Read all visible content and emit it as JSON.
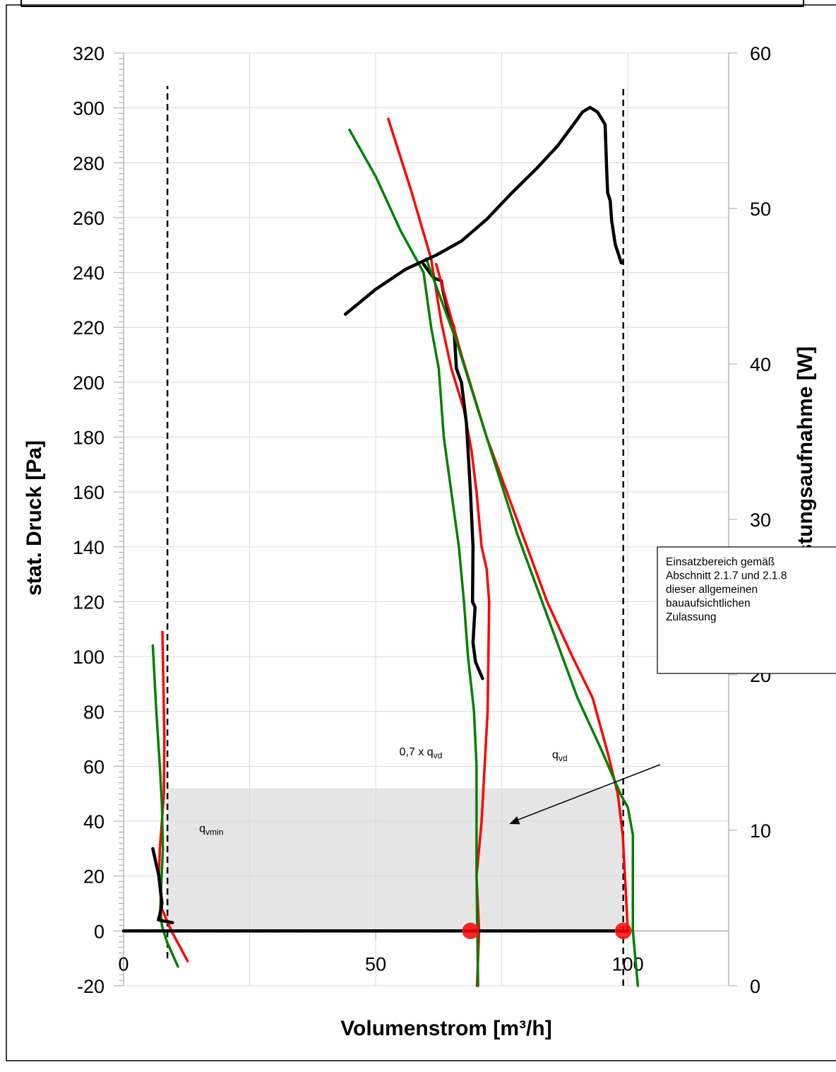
{
  "chart_data": {
    "type": "line",
    "title": "",
    "xlabel": "Volumenstrom [m³/h]",
    "ylabel": "stat. Druck [Pa]",
    "y2label": "Leistungsaufnahme [W]",
    "xlim": [
      0,
      120
    ],
    "ylim": [
      -20,
      320
    ],
    "y2lim": [
      0,
      60
    ],
    "xticks": [
      "0",
      "50",
      "100"
    ],
    "yticks": [
      "320",
      "300",
      "280",
      "260",
      "240",
      "220",
      "200",
      "180",
      "160",
      "140",
      "120",
      "100",
      "80",
      "60",
      "40",
      "20",
      "0",
      "-20"
    ],
    "y2ticks": [
      "60",
      "50",
      "40",
      "30",
      "20",
      "10",
      "0"
    ],
    "grid": true,
    "colors": {
      "red": "#ff0000",
      "green": "#008000",
      "black": "#000000",
      "shade": "#e5e5e5",
      "marker": "#ff0000"
    },
    "series": [
      {
        "color": "#ff0000",
        "axis": "left",
        "x": [
          7.7,
          7.9,
          8.1,
          8.0,
          7.6,
          7.2,
          7.0,
          7.6,
          9.5,
          12.7
        ],
        "y": [
          109,
          90,
          70,
          50,
          40,
          30,
          20,
          8,
          0,
          -11
        ]
      },
      {
        "color": "#008000",
        "axis": "left",
        "x": [
          5.8,
          6.5,
          7.2,
          7.6,
          7.8,
          7.5,
          7.3,
          7.6,
          8.6,
          10.8
        ],
        "y": [
          104,
          80,
          60,
          46,
          30,
          18,
          8,
          2,
          -4,
          -13
        ]
      },
      {
        "color": "#000000",
        "axis": "left",
        "x": [
          5.8,
          7.0,
          7.6,
          7.2,
          6.9,
          9.7
        ],
        "y": [
          30,
          20,
          10,
          6,
          4,
          3
        ]
      },
      {
        "color": "#ff0000",
        "axis": "left",
        "x": [
          52.5,
          57,
          61,
          63,
          65,
          67.5,
          69,
          70,
          71,
          72,
          72.5,
          72.2,
          71,
          70,
          70.5,
          70.1
        ],
        "y": [
          296,
          270,
          245,
          222,
          205,
          190,
          175,
          160,
          140,
          132,
          120,
          80,
          40,
          20,
          0,
          -20
        ]
      },
      {
        "color": "#008000",
        "axis": "left",
        "x": [
          44.8,
          50,
          55,
          59.5,
          61,
          62.5,
          63.5,
          65,
          66.5,
          67.5,
          68.3,
          69.5,
          70,
          70,
          70.3
        ],
        "y": [
          292,
          275,
          255,
          240,
          220,
          205,
          180,
          160,
          140,
          120,
          100,
          80,
          60,
          20,
          -20
        ]
      },
      {
        "color": "#000000",
        "axis": "left",
        "x": [
          59.5,
          61.5,
          63,
          63.5,
          64.5,
          65.5,
          66,
          67,
          68,
          68.8,
          69.3,
          69.2,
          69.7,
          69.3,
          69.8,
          71.2
        ],
        "y": [
          243,
          238,
          237,
          232,
          225,
          220,
          205,
          200,
          185,
          160,
          140,
          120,
          118,
          105,
          98,
          92
        ]
      },
      {
        "color": "#ff0000",
        "axis": "left",
        "x": [
          62,
          67,
          72,
          78,
          84,
          89,
          93,
          96,
          98,
          99,
          100
        ],
        "y": [
          243,
          210,
          180,
          150,
          120,
          100,
          85,
          65,
          50,
          35,
          0
        ]
      },
      {
        "color": "#008000",
        "axis": "left",
        "x": [
          60,
          66,
          72,
          78,
          84,
          90,
          95,
          98.5,
          100,
          101,
          101,
          102
        ],
        "y": [
          245,
          215,
          180,
          145,
          115,
          85,
          65,
          50,
          45,
          35,
          0,
          -20
        ]
      },
      {
        "color": "#000000",
        "axis": "right",
        "x": [
          44,
          50,
          56,
          62,
          67,
          72,
          77,
          82,
          86,
          89,
          91,
          92.5,
          94,
          95.5,
          95.8,
          96,
          96.5,
          96.8,
          97.5,
          98.7
        ],
        "y": [
          43.2,
          44.8,
          46.1,
          47.0,
          47.9,
          49.3,
          51.0,
          52.6,
          54.0,
          55.3,
          56.2,
          56.5,
          56.2,
          55.4,
          52.5,
          51.0,
          50.5,
          49.2,
          47.7,
          46.5
        ]
      },
      {
        "color": "#000000",
        "axis": "left",
        "x": [
          0,
          100
        ],
        "y": [
          0,
          0
        ]
      }
    ],
    "markers": [
      {
        "x": 68.8,
        "y": 0
      },
      {
        "x": 99.1,
        "y": 0
      }
    ],
    "vlines": [
      {
        "x": 8.7,
        "y": [
          -10,
          308
        ]
      },
      {
        "x": 99.1,
        "y": [
          -20,
          307
        ]
      }
    ],
    "baseline_dashed": {
      "x": [
        0,
        99.1
      ],
      "y": 0
    },
    "shaded_region": {
      "x": [
        8.7,
        99.1
      ],
      "y": [
        0,
        52
      ]
    },
    "annotations": {
      "qvmin": {
        "base": "q",
        "sub": "vmin",
        "x": 15,
        "y": 36
      },
      "q07": {
        "prefix": "0,7 x q",
        "sub": "vd",
        "x": 54.7,
        "y": 64
      },
      "qvd": {
        "base": "q",
        "sub": "vd",
        "x": 85,
        "y": 63
      }
    },
    "callout": {
      "lines": [
        "Einsatzbereich gemäß",
        "Abschnitt 2.1.7 und 2.1.8",
        "dieser allgemeinen",
        "bauaufsichtlichen",
        "Zulassung"
      ],
      "arrow_to": {
        "x": 76.5,
        "y": 39
      }
    }
  }
}
